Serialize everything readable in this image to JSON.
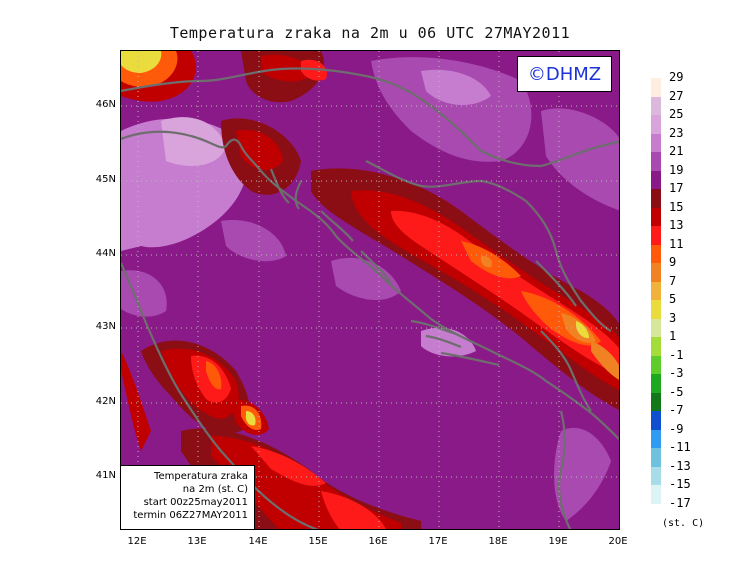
{
  "title": "Temperatura zraka na 2m u 06 UTC 27MAY2011",
  "logo_text": "©DHMZ",
  "info_box": {
    "line1": "Temperatura zraka",
    "line2": "na 2m (st. C)",
    "line3": "start 00z25may2011",
    "line4": "termin 06Z27MAY2011"
  },
  "lat_labels": [
    "46N",
    "45N",
    "44N",
    "43N",
    "42N",
    "41N"
  ],
  "lon_labels": [
    "12E",
    "13E",
    "14E",
    "15E",
    "16E",
    "17E",
    "18E",
    "19E",
    "20E"
  ],
  "legend": {
    "unit": "(st. C)",
    "labels": [
      "29",
      "27",
      "25",
      "23",
      "21",
      "19",
      "17",
      "15",
      "13",
      "11",
      "9",
      "7",
      "5",
      "3",
      "1",
      "-1",
      "-3",
      "-5",
      "-7",
      "-9",
      "-11",
      "-13",
      "-15",
      "-17"
    ],
    "colors": [
      "#fdeee0",
      "#dcb8dc",
      "#d9a3db",
      "#c77dcf",
      "#a84ab0",
      "#8b1a89",
      "#8a0e14",
      "#c00000",
      "#ff1a1a",
      "#ff5a0a",
      "#f08224",
      "#f0b23a",
      "#eadc3c",
      "#d6e69a",
      "#a4dd3a",
      "#5ecc2a",
      "#1ea820",
      "#12781a",
      "#0f4fd0",
      "#2f9cf2",
      "#6ec2e0",
      "#a8dce8",
      "#ddf4f4"
    ]
  }
}
